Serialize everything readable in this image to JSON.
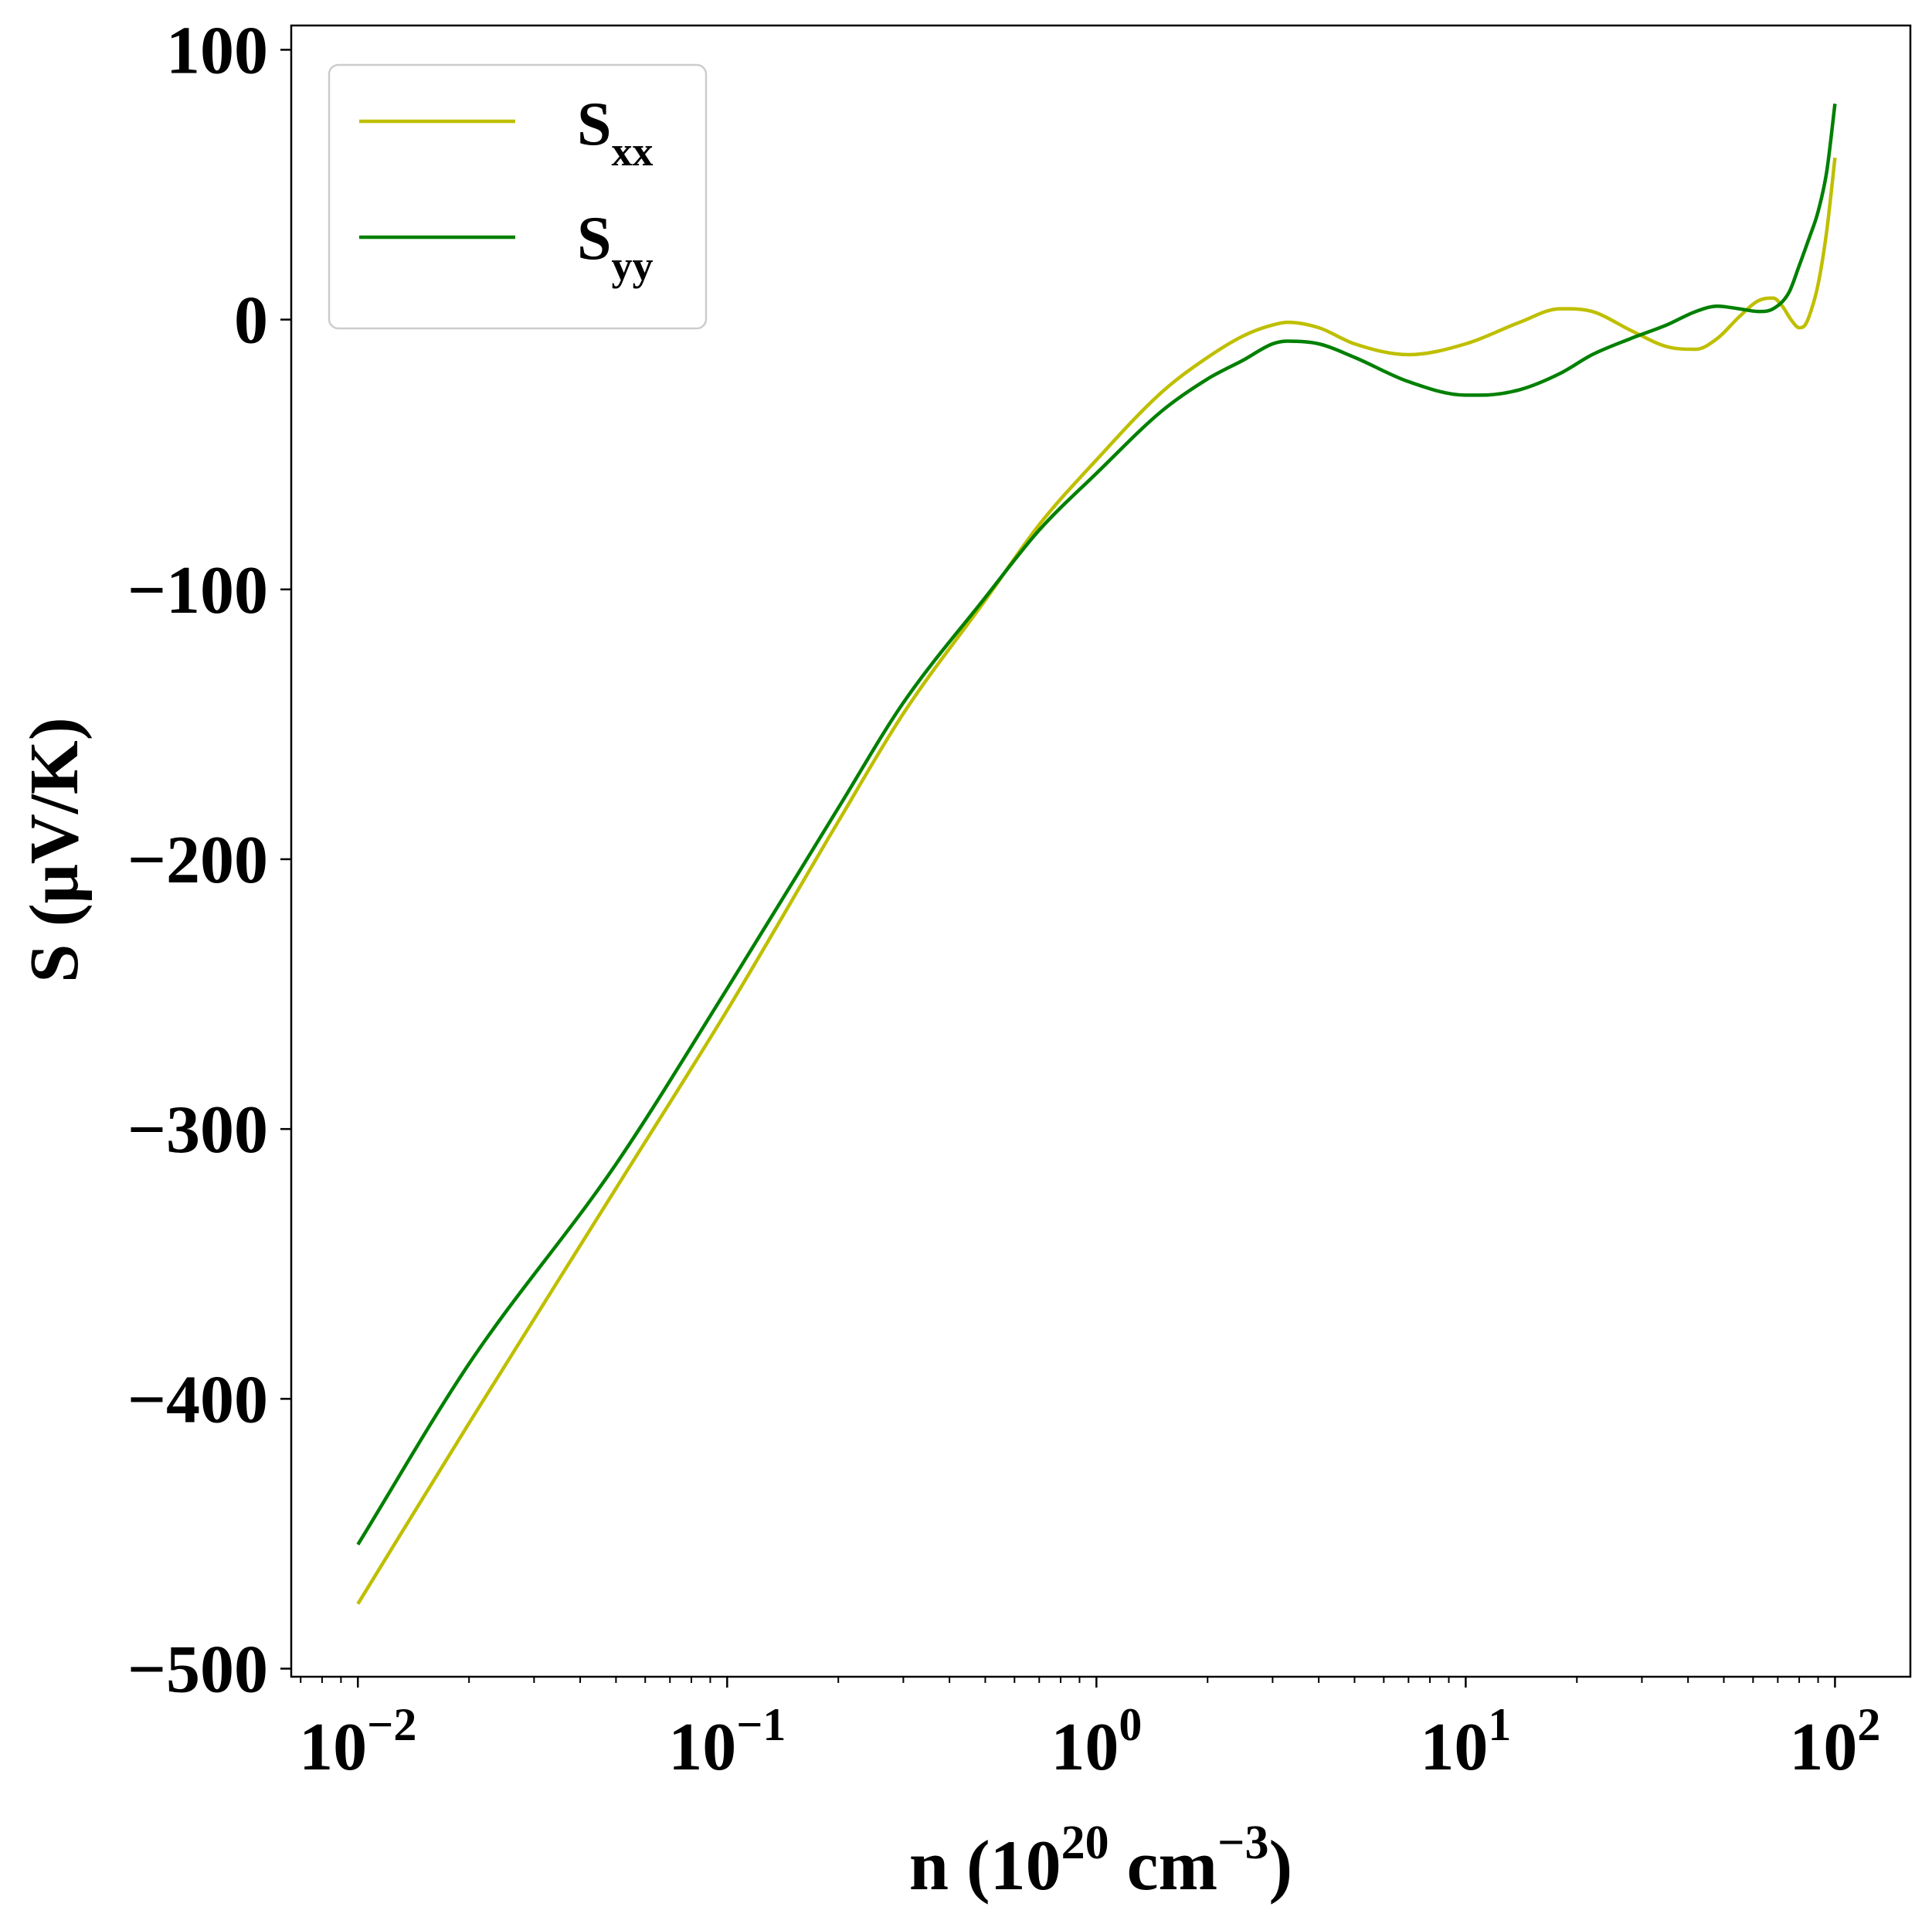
{
  "chart_data": {
    "type": "line",
    "title": "",
    "xlabel": {
      "prefix": "n (10",
      "sup1": "20",
      "mid": " cm",
      "sup2": "−3",
      "suffix": ")"
    },
    "ylabel": "S (μV/K)",
    "xscale": "log",
    "xlim": [
      0.0066,
      160
    ],
    "ylim": [
      -503,
      109
    ],
    "grid": false,
    "legend_position": "top-left",
    "y_ticks": [
      {
        "value": 100,
        "label": "100"
      },
      {
        "value": 0,
        "label": "0"
      },
      {
        "value": -100,
        "label": "−100"
      },
      {
        "value": -200,
        "label": "−200"
      },
      {
        "value": -300,
        "label": "−300"
      },
      {
        "value": -400,
        "label": "−400"
      },
      {
        "value": -500,
        "label": "−500"
      }
    ],
    "x_ticks": [
      {
        "value": 0.01,
        "base": "10",
        "exp": "−2"
      },
      {
        "value": 0.1,
        "base": "10",
        "exp": "−1"
      },
      {
        "value": 1,
        "base": "10",
        "exp": "0"
      },
      {
        "value": 10,
        "base": "10",
        "exp": "1"
      },
      {
        "value": 100,
        "base": "10",
        "exp": "2"
      }
    ],
    "series": [
      {
        "name": "S",
        "sub": "xx",
        "color": "#bfbf00",
        "x": [
          0.01,
          0.02,
          0.05,
          0.1,
          0.2,
          0.3,
          0.5,
          0.7,
          1.0,
          1.5,
          2.0,
          2.5,
          3.0,
          3.3,
          4.0,
          5.0,
          7.0,
          10,
          14,
          18,
          22,
          28,
          35,
          42,
          48,
          55,
          62,
          68,
          72,
          76,
          80,
          83,
          86,
          90,
          95,
          100
        ],
        "y": [
          -476,
          -409,
          -322,
          -256,
          -186,
          -146,
          -104,
          -76,
          -52,
          -27,
          -14,
          -6,
          -2,
          -1,
          -3,
          -9,
          -13,
          -9,
          -1,
          4,
          3,
          -4,
          -10,
          -11,
          -7,
          1,
          7,
          8,
          5,
          0,
          -3,
          -2,
          3,
          13,
          33,
          60
        ]
      },
      {
        "name": "S",
        "sub": "yy",
        "color": "#008000",
        "x": [
          0.01,
          0.02,
          0.05,
          0.1,
          0.2,
          0.3,
          0.5,
          0.7,
          1.0,
          1.5,
          2.0,
          2.5,
          3.0,
          3.3,
          4.0,
          5.0,
          7.0,
          10,
          11,
          14,
          18,
          22,
          28,
          35,
          42,
          48,
          55,
          62,
          68,
          75,
          80,
          85,
          90,
          95,
          100
        ],
        "y": [
          -454,
          -387,
          -313,
          -248,
          -181,
          -142,
          -103,
          -78,
          -57,
          -34,
          -22,
          -15,
          -9,
          -8,
          -9,
          -14,
          -23,
          -28,
          -28,
          -26,
          -20,
          -13,
          -7,
          -2,
          3,
          5,
          4,
          3,
          4,
          10,
          20,
          30,
          40,
          55,
          80
        ]
      }
    ]
  }
}
